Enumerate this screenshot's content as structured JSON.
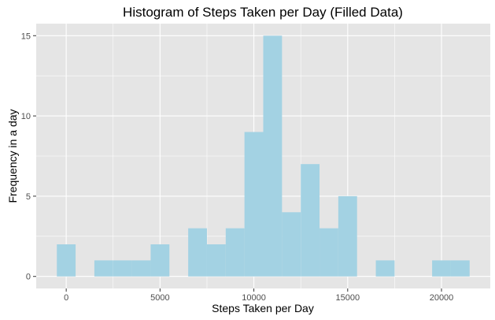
{
  "chart_data": {
    "type": "bar",
    "title": "Histogram of Steps Taken per Day (Filled Data)",
    "xlabel": "Steps Taken per Day",
    "ylabel": "Frequency in a day",
    "bin_width": 1000,
    "bins": [
      {
        "start": -500,
        "end": 500,
        "count": 2
      },
      {
        "start": 500,
        "end": 1500,
        "count": 0
      },
      {
        "start": 1500,
        "end": 2500,
        "count": 1
      },
      {
        "start": 2500,
        "end": 3500,
        "count": 1
      },
      {
        "start": 3500,
        "end": 4500,
        "count": 1
      },
      {
        "start": 4500,
        "end": 5500,
        "count": 2
      },
      {
        "start": 5500,
        "end": 6500,
        "count": 0
      },
      {
        "start": 6500,
        "end": 7500,
        "count": 3
      },
      {
        "start": 7500,
        "end": 8500,
        "count": 2
      },
      {
        "start": 8500,
        "end": 9500,
        "count": 3
      },
      {
        "start": 9500,
        "end": 10500,
        "count": 9
      },
      {
        "start": 10500,
        "end": 11500,
        "count": 15
      },
      {
        "start": 11500,
        "end": 12500,
        "count": 4
      },
      {
        "start": 12500,
        "end": 13500,
        "count": 7
      },
      {
        "start": 13500,
        "end": 14500,
        "count": 3
      },
      {
        "start": 14500,
        "end": 15500,
        "count": 5
      },
      {
        "start": 15500,
        "end": 16500,
        "count": 0
      },
      {
        "start": 16500,
        "end": 17500,
        "count": 1
      },
      {
        "start": 17500,
        "end": 18500,
        "count": 0
      },
      {
        "start": 18500,
        "end": 19500,
        "count": 0
      },
      {
        "start": 19500,
        "end": 20500,
        "count": 1
      },
      {
        "start": 20500,
        "end": 21500,
        "count": 1
      }
    ],
    "x_ticks": [
      0,
      5000,
      10000,
      15000,
      20000
    ],
    "y_ticks": [
      0,
      5,
      10,
      15
    ],
    "xlim": [
      -1600,
      22600
    ],
    "ylim": [
      -0.75,
      15.75
    ],
    "bar_color": "#a3d2e3",
    "panel_color": "#e5e5e5",
    "grid_color": "#ffffff",
    "grid": true
  }
}
